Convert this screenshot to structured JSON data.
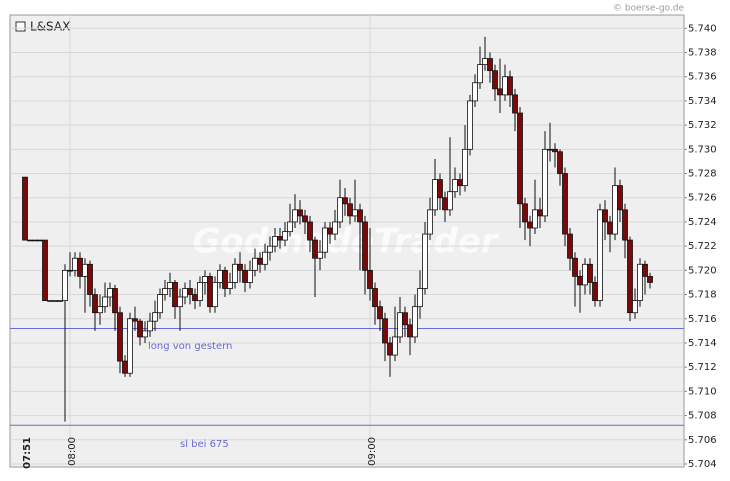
{
  "chart_data": {
    "type": "candlestick",
    "title": "L&SAX",
    "source": "© boerse-go.de",
    "watermark": "GodmodeTrader",
    "up_color": "#ffffff",
    "down_color": "#7a0a0a",
    "grid": true,
    "categories": [
      "07:51",
      null,
      null,
      null,
      null,
      null,
      null,
      null,
      null,
      "08:00",
      null,
      null,
      null,
      null,
      null,
      null,
      null,
      null,
      null,
      null,
      null,
      null,
      null,
      null,
      null,
      null,
      null,
      null,
      null,
      null,
      null,
      null,
      null,
      null,
      null,
      null,
      null,
      null,
      null,
      null,
      null,
      null,
      null,
      null,
      null,
      null,
      null,
      null,
      null,
      null,
      null,
      null,
      null,
      null,
      null,
      null,
      null,
      null,
      null,
      null,
      null,
      null,
      null,
      null,
      null,
      null,
      null,
      null,
      null,
      "09:00",
      null,
      null,
      null,
      null,
      null,
      null,
      null,
      null,
      null,
      null,
      null,
      null,
      null,
      null,
      null,
      null,
      null,
      null,
      null,
      null,
      null,
      null,
      null,
      null,
      null,
      null,
      null,
      null,
      null,
      null,
      null,
      null,
      null,
      null,
      null,
      null,
      null,
      null,
      null,
      null,
      null,
      null,
      null,
      null,
      null,
      null,
      null,
      null,
      null,
      null,
      null,
      null,
      null,
      null,
      null,
      null
    ],
    "open": [
      5.7277,
      5.7225,
      5.7225,
      5.7225,
      5.7225,
      5.7175,
      5.7175,
      5.7175,
      5.7175,
      5.72,
      5.72,
      5.721,
      5.7195,
      5.7205,
      5.718,
      5.7165,
      5.717,
      5.7178,
      5.7185,
      5.7165,
      5.7125,
      5.7115,
      5.716,
      5.7158,
      5.7145,
      5.715,
      5.7158,
      5.7165,
      5.718,
      5.7185,
      5.719,
      5.717,
      5.7178,
      5.7185,
      5.718,
      5.7175,
      5.719,
      5.7195,
      5.717,
      5.719,
      5.72,
      5.7185,
      5.719,
      5.7205,
      5.72,
      5.719,
      5.72,
      5.721,
      5.7205,
      5.7215,
      5.722,
      5.7228,
      5.7225,
      5.7232,
      5.724,
      5.725,
      5.7245,
      5.724,
      5.7225,
      5.721,
      5.7215,
      5.7235,
      5.723,
      5.724,
      5.726,
      5.7255,
      5.7245,
      5.725,
      5.724,
      5.72,
      5.7185,
      5.717,
      5.716,
      5.714,
      5.713,
      5.7145,
      5.7165,
      5.7155,
      5.7145,
      5.717,
      5.7185,
      5.723,
      5.725,
      5.7275,
      5.726,
      5.725,
      5.7265,
      5.7275,
      5.727,
      5.73,
      5.734,
      5.7355,
      5.737,
      5.7375,
      5.7365,
      5.735,
      5.7345,
      5.736,
      5.7345,
      5.733,
      5.7255,
      5.724,
      5.7235,
      5.725,
      5.7245,
      5.73,
      5.73,
      5.7298,
      5.728,
      5.723,
      5.721,
      5.7195,
      5.7188,
      5.7205,
      5.719,
      5.7175,
      5.725,
      5.724,
      5.723,
      5.727,
      5.725,
      5.7225,
      5.7165,
      5.7175,
      5.7205,
      5.7195
    ],
    "high": [
      5.7277,
      5.7225,
      5.7225,
      5.7225,
      5.7225,
      5.7175,
      5.7175,
      5.7175,
      5.7205,
      5.7215,
      5.7215,
      5.7215,
      5.721,
      5.7208,
      5.7185,
      5.718,
      5.719,
      5.719,
      5.7188,
      5.717,
      5.713,
      5.7165,
      5.717,
      5.716,
      5.7158,
      5.7165,
      5.7175,
      5.7185,
      5.7192,
      5.7198,
      5.7192,
      5.7185,
      5.719,
      5.7192,
      5.7185,
      5.7195,
      5.72,
      5.7198,
      5.7195,
      5.7205,
      5.7203,
      5.7198,
      5.721,
      5.7215,
      5.7205,
      5.7208,
      5.7218,
      5.7215,
      5.7222,
      5.7228,
      5.7235,
      5.7235,
      5.724,
      5.7255,
      5.7263,
      5.7258,
      5.725,
      5.7245,
      5.7228,
      5.7225,
      5.724,
      5.724,
      5.725,
      5.7275,
      5.7268,
      5.726,
      5.7275,
      5.7255,
      5.7245,
      5.7235,
      5.719,
      5.7175,
      5.7165,
      5.7145,
      5.717,
      5.7178,
      5.717,
      5.716,
      5.718,
      5.72,
      5.724,
      5.726,
      5.7292,
      5.728,
      5.7265,
      5.731,
      5.7285,
      5.728,
      5.732,
      5.7345,
      5.7362,
      5.7385,
      5.7393,
      5.738,
      5.737,
      5.7375,
      5.737,
      5.7365,
      5.735,
      5.7335,
      5.726,
      5.7245,
      5.7275,
      5.726,
      5.7315,
      5.7322,
      5.7305,
      5.73,
      5.7285,
      5.7235,
      5.7215,
      5.72,
      5.721,
      5.721,
      5.7195,
      5.7255,
      5.7258,
      5.7245,
      5.7285,
      5.7275,
      5.7255,
      5.7228,
      5.7185,
      5.721,
      5.7208,
      5.7198
    ],
    "low": [
      5.7225,
      5.7225,
      5.7225,
      5.7225,
      5.7175,
      5.7175,
      5.7175,
      5.7175,
      5.7075,
      5.7195,
      5.7195,
      5.7185,
      5.7165,
      5.717,
      5.715,
      5.7155,
      5.7165,
      5.717,
      5.715,
      5.7115,
      5.7112,
      5.7112,
      5.715,
      5.7138,
      5.714,
      5.7145,
      5.715,
      5.716,
      5.7175,
      5.7178,
      5.716,
      5.715,
      5.7172,
      5.7172,
      5.7168,
      5.717,
      5.718,
      5.7165,
      5.7165,
      5.7185,
      5.7178,
      5.718,
      5.7185,
      5.719,
      5.7182,
      5.7185,
      5.7195,
      5.7198,
      5.72,
      5.7208,
      5.7215,
      5.7218,
      5.722,
      5.7228,
      5.7235,
      5.7238,
      5.723,
      5.7215,
      5.7178,
      5.72,
      5.721,
      5.7222,
      5.7225,
      5.7235,
      5.7245,
      5.7238,
      5.724,
      5.72,
      5.718,
      5.7175,
      5.7155,
      5.715,
      5.7125,
      5.7112,
      5.7125,
      5.714,
      5.7145,
      5.713,
      5.714,
      5.716,
      5.718,
      5.7225,
      5.7245,
      5.725,
      5.724,
      5.7245,
      5.726,
      5.7262,
      5.7265,
      5.7295,
      5.7335,
      5.735,
      5.7365,
      5.7355,
      5.734,
      5.733,
      5.734,
      5.7335,
      5.7315,
      5.7235,
      5.7225,
      5.722,
      5.723,
      5.7235,
      5.724,
      5.729,
      5.7285,
      5.727,
      5.722,
      5.72,
      5.717,
      5.7165,
      5.718,
      5.718,
      5.717,
      5.717,
      5.7225,
      5.7215,
      5.7225,
      5.724,
      5.721,
      5.7158,
      5.716,
      5.717,
      5.718,
      5.7185
    ],
    "close": [
      5.7225,
      5.7225,
      5.7225,
      5.7225,
      5.7175,
      5.7175,
      5.7175,
      5.7175,
      5.72,
      5.72,
      5.721,
      5.7195,
      5.7205,
      5.718,
      5.7165,
      5.717,
      5.7178,
      5.7185,
      5.7165,
      5.7125,
      5.7115,
      5.716,
      5.7158,
      5.7145,
      5.715,
      5.7158,
      5.7165,
      5.718,
      5.7185,
      5.719,
      5.717,
      5.7178,
      5.7185,
      5.718,
      5.7175,
      5.719,
      5.7195,
      5.717,
      5.719,
      5.72,
      5.7185,
      5.719,
      5.7205,
      5.72,
      5.719,
      5.72,
      5.721,
      5.7205,
      5.7215,
      5.722,
      5.7228,
      5.7225,
      5.7232,
      5.724,
      5.725,
      5.7245,
      5.724,
      5.7225,
      5.721,
      5.7215,
      5.7235,
      5.723,
      5.724,
      5.726,
      5.7255,
      5.7245,
      5.725,
      5.724,
      5.72,
      5.7185,
      5.717,
      5.716,
      5.714,
      5.713,
      5.7145,
      5.7165,
      5.7155,
      5.7145,
      5.717,
      5.7185,
      5.723,
      5.725,
      5.7275,
      5.726,
      5.725,
      5.7265,
      5.7275,
      5.727,
      5.73,
      5.734,
      5.7355,
      5.737,
      5.7375,
      5.7365,
      5.735,
      5.7345,
      5.736,
      5.7345,
      5.733,
      5.7255,
      5.724,
      5.7235,
      5.725,
      5.7245,
      5.73,
      5.73,
      5.7298,
      5.728,
      5.723,
      5.721,
      5.7195,
      5.7188,
      5.7205,
      5.719,
      5.7175,
      5.725,
      5.724,
      5.723,
      5.727,
      5.725,
      5.7225,
      5.7165,
      5.7175,
      5.7205,
      5.7195,
      5.719
    ],
    "ylim": [
      5.7038,
      5.7411
    ],
    "yticks": [
      5.704,
      5.706,
      5.708,
      {
        "value": 5.71,
        "label": "5.710"
      },
      5.712,
      5.714,
      5.716,
      5.718,
      {
        "value": 5.72,
        "label": "5.720"
      },
      5.722,
      5.724,
      5.726,
      5.728,
      {
        "value": 5.73,
        "label": "5.730"
      },
      5.732,
      5.734,
      5.736,
      5.738,
      {
        "value": 5.74,
        "label": "5.740"
      }
    ],
    "hlines": [
      {
        "value": 5.7152,
        "label": "long von gestern",
        "color": "#6a6ad8"
      },
      {
        "value": 5.7072,
        "label": "sl bei 675",
        "color": "#6a6ad8"
      }
    ]
  }
}
